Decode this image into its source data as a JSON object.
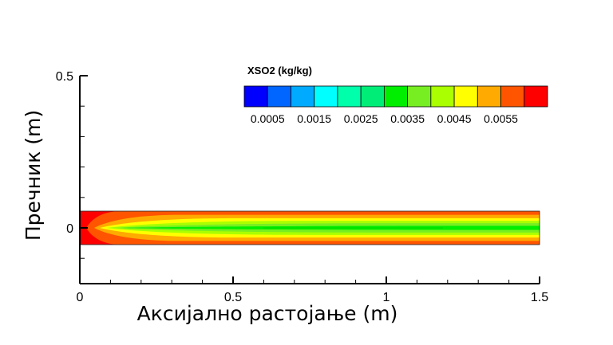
{
  "chart_data": {
    "type": "heatmap",
    "title": "",
    "xlabel": "Аксијално растојање (m)",
    "ylabel": "Пречник (m)",
    "xlim": [
      0,
      1.5
    ],
    "ylim": [
      -0.18,
      0.5
    ],
    "x_ticks": [
      {
        "value": 0,
        "label": "0"
      },
      {
        "value": 0.5,
        "label": "0.5"
      },
      {
        "value": 1,
        "label": "1"
      },
      {
        "value": 1.5,
        "label": "1.5"
      }
    ],
    "y_ticks": [
      {
        "value": 0,
        "label": "0"
      },
      {
        "value": 0.5,
        "label": "0.5"
      }
    ],
    "domain": {
      "x": [
        0,
        1.5
      ],
      "y": [
        -0.055,
        0.055
      ]
    },
    "colorbar": {
      "title": "XSO2 (kg/kg)",
      "levels": [
        0.0,
        0.0005,
        0.001,
        0.0015,
        0.002,
        0.0025,
        0.003,
        0.0035,
        0.004,
        0.0045,
        0.005,
        0.0055,
        0.006,
        0.0065
      ],
      "colors": [
        "#0000ff",
        "#0066ff",
        "#00aaff",
        "#00ffff",
        "#00ffaa",
        "#00ee77",
        "#00ee00",
        "#77ee22",
        "#aaff00",
        "#ffff00",
        "#ffaa00",
        "#ff5500",
        "#ff0000"
      ],
      "tick_labels": [
        "0.0005",
        "0.0015",
        "0.0025",
        "0.0035",
        "0.0045",
        "0.0055"
      ]
    },
    "bands": [
      {
        "value": 0.0062,
        "color": "#ff0000"
      },
      {
        "value": 0.0057,
        "color": "#ff5500"
      },
      {
        "value": 0.0052,
        "color": "#ffaa00"
      },
      {
        "value": 0.0047,
        "color": "#ffff00"
      },
      {
        "value": 0.0042,
        "color": "#aaff00"
      },
      {
        "value": 0.0037,
        "color": "#77ee22"
      },
      {
        "value": 0.0032,
        "color": "#00ee00"
      }
    ]
  }
}
